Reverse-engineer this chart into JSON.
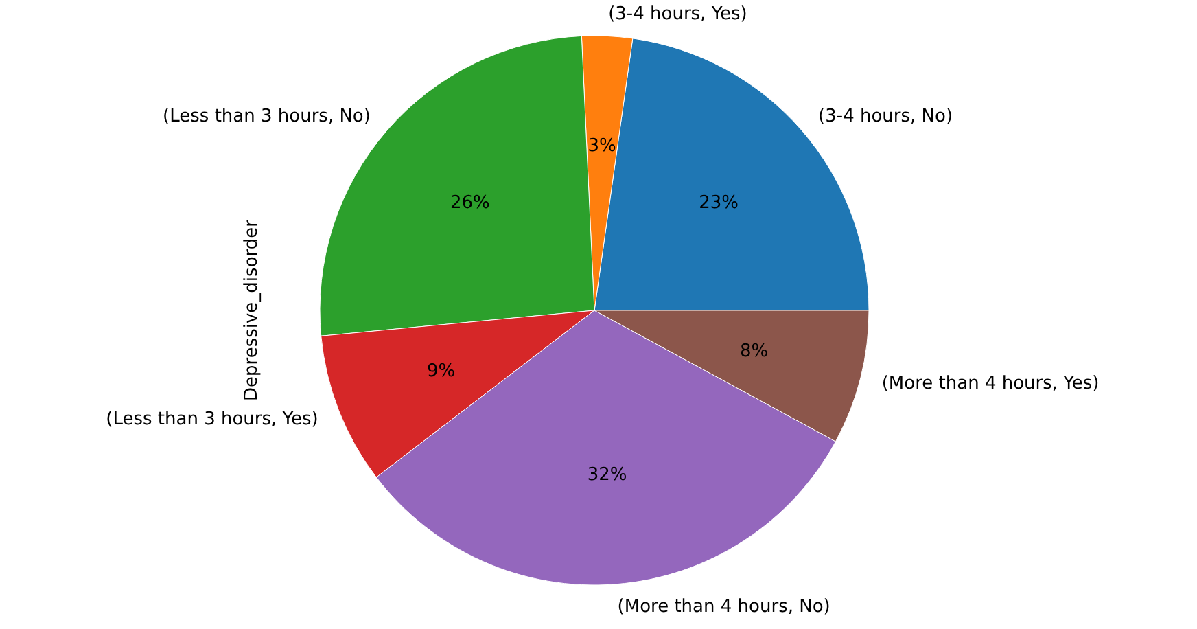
{
  "chart_data": {
    "type": "pie",
    "ylabel": "Depressive_disorder",
    "categories": [
      "(3-4 hours, No)",
      "(3-4 hours, Yes)",
      "(Less than 3 hours, No)",
      "(Less than 3 hours, Yes)",
      "(More than 4 hours, No)",
      "(More than 4 hours, Yes)"
    ],
    "values": [
      23,
      3,
      26,
      9,
      32,
      8
    ],
    "value_labels": [
      "23%",
      "3%",
      "26%",
      "9%",
      "32%",
      "8%"
    ],
    "colors": [
      "#1f77b4",
      "#ff7f0e",
      "#2ca02c",
      "#d62728",
      "#9467bd",
      "#8c564b"
    ]
  }
}
